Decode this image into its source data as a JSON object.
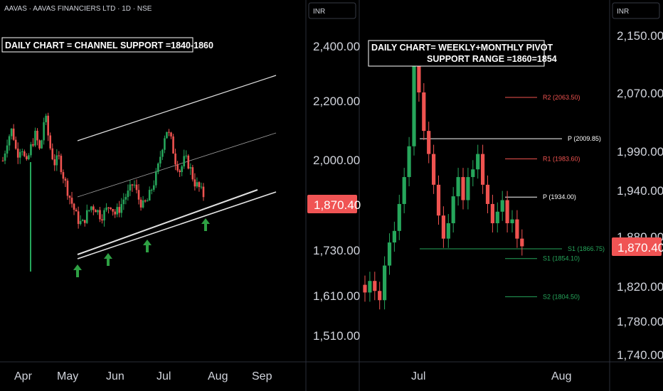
{
  "colors": {
    "up": "#26a65b",
    "down": "#ef5350",
    "bg": "#000000",
    "text": "#d1d4dc",
    "grid": "#2a2e39",
    "badge": "#f05454"
  },
  "left_chart": {
    "title": "AAVAS · AAVAS FINANCIERS LTD · 1D · NSE",
    "currency_button": "INR",
    "annotation": "DAILY CHART = CHANNEL SUPPORT =1840-1860",
    "price_badge": "1,870.40"
  },
  "right_chart": {
    "currency_button": "INR",
    "annotation_line1": "DAILY CHART= WEEKLY+MONTHLY PIVOT",
    "annotation_line2": "SUPPORT RANGE =1860=1854",
    "price_badge": "1,870.40",
    "pivots": [
      {
        "label": "R2 (2063.50)",
        "value": 2063.5,
        "color": "#ef5350"
      },
      {
        "label": "P (2009.85)",
        "value": 2009.85,
        "color": "#ffffff"
      },
      {
        "label": "R1 (1983.60)",
        "value": 1983.6,
        "color": "#ef5350"
      },
      {
        "label": "P (1934.00)",
        "value": 1934.0,
        "color": "#ffffff"
      },
      {
        "label": "S1 (1866.75)",
        "value": 1866.75,
        "color": "#26a65b"
      },
      {
        "label": "S1 (1854.10)",
        "value": 1854.1,
        "color": "#26a65b"
      },
      {
        "label": "S2 (1804.50)",
        "value": 1804.5,
        "color": "#26a65b"
      }
    ]
  },
  "chart_data": [
    {
      "type": "candlestick",
      "title": "AAVAS · AAVAS FINANCIERS LTD · 1D · NSE",
      "y_axis_ticks": [
        "2,400.00",
        "2,200.00",
        "2,000.00",
        "1,730.00",
        "1,610.00",
        "1,510.00"
      ],
      "x_axis_ticks": [
        "Apr",
        "May",
        "Jun",
        "Jul",
        "Aug",
        "Sep"
      ],
      "last_price": 1870.4,
      "close_path": [
        2000,
        2080,
        2120,
        2020,
        2060,
        1980,
        2050,
        2100,
        2030,
        2180,
        2060,
        1990,
        2010,
        1940,
        1880,
        1830,
        1780,
        1760,
        1800,
        1830,
        1820,
        1790,
        1810,
        1840,
        1800,
        1820,
        1860,
        1880,
        1920,
        1860,
        1830,
        1850,
        1900,
        1950,
        2040,
        2120,
        2080,
        2000,
        1960,
        2010,
        1980,
        1920,
        1900,
        1870
      ],
      "annotations": [
        "DAILY CHART = CHANNEL SUPPORT =1840-1860"
      ]
    },
    {
      "type": "candlestick",
      "y_axis_ticks": [
        "2,150.00",
        "2,070.00",
        "1,990.00",
        "1,940.00",
        "1,880.00",
        "1,820.00",
        "1,780.00",
        "1,740.00"
      ],
      "x_axis_ticks": [
        "Jul",
        "Aug"
      ],
      "last_price": 1870.4,
      "candles": [
        {
          "o": 1820,
          "c": 1810
        },
        {
          "o": 1810,
          "c": 1825
        },
        {
          "o": 1825,
          "c": 1812
        },
        {
          "o": 1812,
          "c": 1800
        },
        {
          "o": 1800,
          "c": 1845
        },
        {
          "o": 1845,
          "c": 1875
        },
        {
          "o": 1875,
          "c": 1890
        },
        {
          "o": 1890,
          "c": 1925
        },
        {
          "o": 1925,
          "c": 1960
        },
        {
          "o": 1960,
          "c": 2000
        },
        {
          "o": 2000,
          "c": 2120
        },
        {
          "o": 2120,
          "c": 2070
        },
        {
          "o": 2070,
          "c": 2020
        },
        {
          "o": 2020,
          "c": 1990
        },
        {
          "o": 1990,
          "c": 1950
        },
        {
          "o": 1950,
          "c": 1910
        },
        {
          "o": 1910,
          "c": 1880
        },
        {
          "o": 1880,
          "c": 1900
        },
        {
          "o": 1900,
          "c": 1935
        },
        {
          "o": 1935,
          "c": 1960
        },
        {
          "o": 1960,
          "c": 1930
        },
        {
          "o": 1930,
          "c": 1960
        },
        {
          "o": 1960,
          "c": 1970
        },
        {
          "o": 1970,
          "c": 1990
        },
        {
          "o": 1990,
          "c": 1950
        },
        {
          "o": 1950,
          "c": 1925
        },
        {
          "o": 1925,
          "c": 1900
        },
        {
          "o": 1900,
          "c": 1915
        },
        {
          "o": 1915,
          "c": 1930
        },
        {
          "o": 1930,
          "c": 1900
        },
        {
          "o": 1900,
          "c": 1905
        },
        {
          "o": 1905,
          "c": 1880
        },
        {
          "o": 1880,
          "c": 1870
        }
      ],
      "annotations": [
        "DAILY CHART= WEEKLY+MONTHLY PIVOT",
        "SUPPORT RANGE =1860=1854"
      ]
    }
  ]
}
